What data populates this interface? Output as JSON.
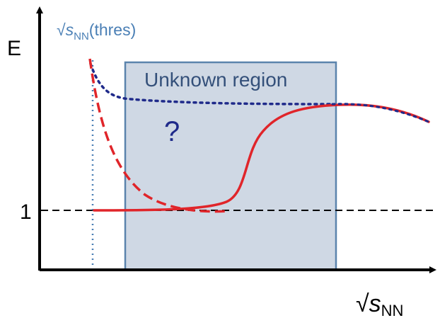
{
  "axes": {
    "y_label": "E",
    "y_reference_label": "1",
    "x_label_root": "√",
    "x_label_var": "s",
    "x_label_sub": "NN"
  },
  "threshold": {
    "label_root": "√",
    "label_var": "s",
    "label_sub": "NN",
    "label_suffix": "(thres)"
  },
  "region": {
    "label": "Unknown region",
    "question_mark": "?"
  },
  "colors": {
    "axis": "#000000",
    "reference_line": "#000000",
    "threshold_line": "#4a7fb5",
    "threshold_text": "#4a7fb5",
    "region_fill": "#cfd8e4",
    "region_border": "#5b84ad",
    "region_text": "#34507a",
    "question_mark": "#1f2a8a",
    "curve_red": "#e0252a",
    "curve_blue_dotted": "#1f2a8a"
  }
}
